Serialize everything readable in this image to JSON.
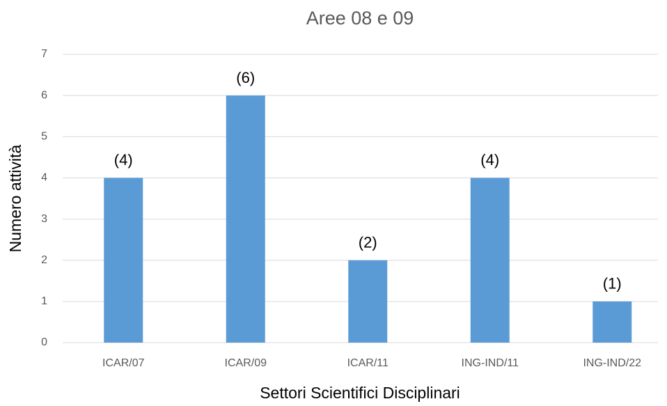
{
  "chart_data": {
    "type": "bar",
    "title": "Aree 08 e 09",
    "x_label": "Settori Scientifici Disciplinari",
    "y_label": "Numero attività",
    "categories": [
      "ICAR/07",
      "ICAR/09",
      "ICAR/11",
      "ING-IND/11",
      "ING-IND/22"
    ],
    "values": [
      4,
      6,
      2,
      4,
      1
    ],
    "value_labels": [
      "(4)",
      "(6)",
      "(2)",
      "(4)",
      "(1)"
    ],
    "color": "#5b9bd5",
    "ylim": [
      0,
      7
    ],
    "yticks": [
      0,
      1,
      2,
      3,
      4,
      5,
      6,
      7
    ],
    "grid": true
  }
}
